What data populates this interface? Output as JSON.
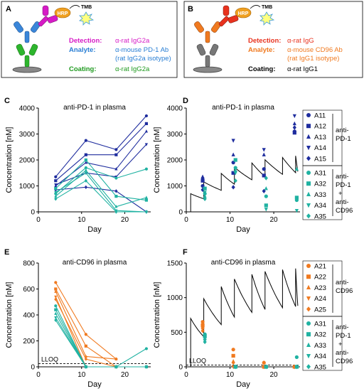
{
  "panels": {
    "A": {
      "letter": "A",
      "hrp": "HRP",
      "tmb": "TMB",
      "detection_label": "Detection:",
      "detection_value": "α-rat IgG2a",
      "analyte_label": "Analyte:",
      "analyte_value_1": "α-mouse PD-1 Ab",
      "analyte_value_2": "(rat IgG2a isotype)",
      "coating_label": "Coating:",
      "coating_value": "α-rat IgG2a"
    },
    "B": {
      "letter": "B",
      "hrp": "HRP",
      "tmb": "TMB",
      "detection_label": "Detection:",
      "detection_value": "α-rat IgG",
      "analyte_label": "Analyte:",
      "analyte_value_1": "α-mouse CD96 Ab",
      "analyte_value_2": "(rat IgG1 isotype)",
      "coating_label": "Coating:",
      "coating_value": "α-rat IgG1"
    },
    "C": {
      "letter": "C"
    },
    "D": {
      "letter": "D",
      "group1_label_1": "anti-",
      "group1_label_2": "PD-1",
      "group2_label_1": "anti-",
      "group2_label_2": "PD-1",
      "group2_label_3": "+",
      "group2_label_4": "anti-",
      "group2_label_5": "CD96"
    },
    "E": {
      "letter": "E",
      "lloq": "LLOQ"
    },
    "F": {
      "letter": "F",
      "lloq": "LLOQ",
      "group1_label_1": "anti-",
      "group1_label_2": "CD96",
      "group2_label_1": "anti-",
      "group2_label_2": "PD-1",
      "group2_label_3": "+",
      "group2_label_4": "anti-",
      "group2_label_5": "CD96"
    }
  },
  "colors": {
    "pd1": "#1f2d9e",
    "pd1_light": "#2a3bd0",
    "combo": "#20b2a2",
    "cd96": "#f07a20",
    "magenta": "#d61bc6",
    "blue_text": "#2a7fd4",
    "green_text": "#1f9a1f",
    "red_text": "#e8321e",
    "orange_text": "#f07a20"
  },
  "chart_data": [
    {
      "panel": "C",
      "type": "line",
      "title": "anti-PD-1 in plasma",
      "xlabel": "Day",
      "ylabel": "Concentration [nM]",
      "xlim": [
        0,
        26
      ],
      "ylim": [
        0,
        4000
      ],
      "xticks": [
        0,
        10,
        20
      ],
      "yticks": [
        0,
        1000,
        2000,
        3000,
        4000
      ],
      "x": [
        4,
        11,
        18,
        25
      ],
      "series": [
        {
          "group": "pd1",
          "values": [
            1350,
            2750,
            2400,
            3700
          ]
        },
        {
          "group": "pd1",
          "values": [
            1200,
            2200,
            2200,
            3400
          ]
        },
        {
          "group": "pd1",
          "values": [
            1000,
            1900,
            1650,
            3100
          ]
        },
        {
          "group": "pd1",
          "values": [
            1050,
            1500,
            1350,
            2600
          ]
        },
        {
          "group": "pd1",
          "values": [
            850,
            950,
            800,
            0
          ]
        },
        {
          "group": "combo",
          "values": [
            700,
            1700,
            1300,
            1650
          ]
        },
        {
          "group": "combo",
          "values": [
            900,
            2000,
            600,
            450
          ]
        },
        {
          "group": "combo",
          "values": [
            600,
            1600,
            200,
            550
          ]
        },
        {
          "group": "combo",
          "values": [
            750,
            1500,
            50,
            0
          ]
        },
        {
          "group": "combo",
          "values": [
            500,
            1200,
            0,
            0
          ]
        }
      ]
    },
    {
      "panel": "D",
      "type": "scatter",
      "title": "anti-PD-1 in plasma",
      "xlabel": "Day",
      "ylabel": "Concentration [nM]",
      "xlim": [
        0,
        26
      ],
      "ylim": [
        0,
        4000
      ],
      "xticks": [
        0,
        10,
        20
      ],
      "yticks": [
        0,
        1000,
        2000,
        3000,
        4000
      ],
      "model_curve": {
        "dose_days": [
          1,
          4,
          8,
          11,
          15,
          18,
          22,
          25
        ],
        "start": 700,
        "peak_increment": 650,
        "decay": 0.72
      },
      "series": [
        {
          "name": "A11",
          "group": "pd1",
          "marker": "circle",
          "x": [
            4,
            11,
            18,
            25
          ],
          "values": [
            1000,
            1900,
            1650,
            3100
          ]
        },
        {
          "name": "A12",
          "group": "pd1",
          "marker": "square",
          "x": [
            4,
            11,
            18,
            25
          ],
          "values": [
            1200,
            1500,
            1400,
            3050
          ]
        },
        {
          "name": "A13",
          "group": "pd1",
          "marker": "triangle-up",
          "x": [
            4,
            11,
            18,
            25
          ],
          "values": [
            1350,
            2200,
            2200,
            3400
          ]
        },
        {
          "name": "A14",
          "group": "pd1",
          "marker": "triangle-down",
          "x": [
            4,
            11,
            18,
            25
          ],
          "values": [
            1250,
            2750,
            2400,
            3700
          ]
        },
        {
          "name": "A15",
          "group": "pd1",
          "marker": "diamond",
          "x": [
            4,
            11,
            18,
            25
          ],
          "values": [
            850,
            950,
            800,
            3250
          ]
        },
        {
          "name": "A31",
          "group": "combo",
          "marker": "circle",
          "x": [
            4,
            11,
            18,
            25
          ],
          "values": [
            700,
            1700,
            600,
            450
          ]
        },
        {
          "name": "A32",
          "group": "combo",
          "marker": "square",
          "x": [
            4,
            11,
            18,
            25
          ],
          "values": [
            900,
            2000,
            250,
            550
          ]
        },
        {
          "name": "A33",
          "group": "combo",
          "marker": "triangle-up",
          "x": [
            4,
            11,
            18,
            25
          ],
          "values": [
            600,
            1600,
            900,
            1650
          ]
        },
        {
          "name": "A34",
          "group": "combo",
          "marker": "triangle-down",
          "x": [
            4,
            11,
            18,
            25
          ],
          "values": [
            750,
            1500,
            100,
            50
          ]
        },
        {
          "name": "A35",
          "group": "combo",
          "marker": "diamond",
          "x": [
            4,
            11,
            18,
            25
          ],
          "values": [
            500,
            1200,
            1300,
            500
          ]
        }
      ]
    },
    {
      "panel": "E",
      "type": "line",
      "title": "anti-CD96 in plasma",
      "xlabel": "Day",
      "ylabel": "Concentration [nM]",
      "xlim": [
        0,
        26
      ],
      "ylim": [
        0,
        800
      ],
      "xticks": [
        0,
        10,
        20
      ],
      "yticks": [
        0,
        200,
        400,
        600,
        800
      ],
      "lloq": 25,
      "x": [
        4,
        11,
        18,
        25
      ],
      "series": [
        {
          "group": "cd96",
          "values": [
            650,
            250,
            60,
            null
          ]
        },
        {
          "group": "cd96",
          "values": [
            600,
            160,
            0,
            null
          ]
        },
        {
          "group": "cd96",
          "values": [
            580,
            80,
            60,
            null
          ]
        },
        {
          "group": "cd96",
          "values": [
            540,
            0,
            0,
            null
          ]
        },
        {
          "group": "cd96",
          "values": [
            520,
            60,
            0,
            null
          ]
        },
        {
          "group": "combo",
          "values": [
            470,
            0,
            0,
            140
          ]
        },
        {
          "group": "combo",
          "values": [
            440,
            0,
            0,
            0
          ]
        },
        {
          "group": "combo",
          "values": [
            410,
            0,
            0,
            0
          ]
        },
        {
          "group": "combo",
          "values": [
            380,
            0,
            0,
            0
          ]
        },
        {
          "group": "combo",
          "values": [
            360,
            0,
            0,
            0
          ]
        }
      ]
    },
    {
      "panel": "F",
      "type": "scatter",
      "title": "anti-CD96 in plasma",
      "xlabel": "Day",
      "ylabel": "Concentration [nM]",
      "xlim": [
        0,
        26
      ],
      "ylim": [
        0,
        1500
      ],
      "xticks": [
        0,
        10,
        20
      ],
      "yticks": [
        0,
        500,
        1000,
        1500
      ],
      "lloq": 25,
      "model_curve": {
        "dose_days": [
          1,
          4,
          8,
          11,
          15,
          18,
          22,
          25
        ],
        "start": 700,
        "peak_increment": 550,
        "decay": 0.62
      },
      "series": [
        {
          "name": "A21",
          "group": "cd96",
          "marker": "circle",
          "x": [
            4,
            11,
            18,
            25
          ],
          "values": [
            650,
            250,
            60,
            0
          ]
        },
        {
          "name": "A22",
          "group": "cd96",
          "marker": "square",
          "x": [
            4,
            11,
            18,
            25
          ],
          "values": [
            600,
            160,
            0,
            0
          ]
        },
        {
          "name": "A23",
          "group": "cd96",
          "marker": "triangle-up",
          "x": [
            4,
            11,
            18,
            25
          ],
          "values": [
            580,
            80,
            60,
            0
          ]
        },
        {
          "name": "A24",
          "group": "cd96",
          "marker": "triangle-down",
          "x": [
            4,
            11,
            18,
            25
          ],
          "values": [
            540,
            0,
            0,
            0
          ]
        },
        {
          "name": "A25",
          "group": "cd96",
          "marker": "diamond",
          "x": [
            4,
            11,
            18,
            25
          ],
          "values": [
            520,
            60,
            0,
            0
          ]
        },
        {
          "name": "A31",
          "group": "combo",
          "marker": "circle",
          "x": [
            4,
            11,
            18,
            25
          ],
          "values": [
            470,
            0,
            0,
            140
          ]
        },
        {
          "name": "A32",
          "group": "combo",
          "marker": "square",
          "x": [
            4,
            11,
            18,
            25
          ],
          "values": [
            440,
            0,
            0,
            0
          ]
        },
        {
          "name": "A33",
          "group": "combo",
          "marker": "triangle-up",
          "x": [
            4,
            11,
            18,
            25
          ],
          "values": [
            410,
            0,
            0,
            0
          ]
        },
        {
          "name": "A34",
          "group": "combo",
          "marker": "triangle-down",
          "x": [
            4,
            11,
            18,
            25
          ],
          "values": [
            380,
            0,
            0,
            0
          ]
        },
        {
          "name": "A35",
          "group": "combo",
          "marker": "diamond",
          "x": [
            4,
            11,
            18,
            25
          ],
          "values": [
            360,
            0,
            0,
            0
          ]
        }
      ]
    }
  ]
}
